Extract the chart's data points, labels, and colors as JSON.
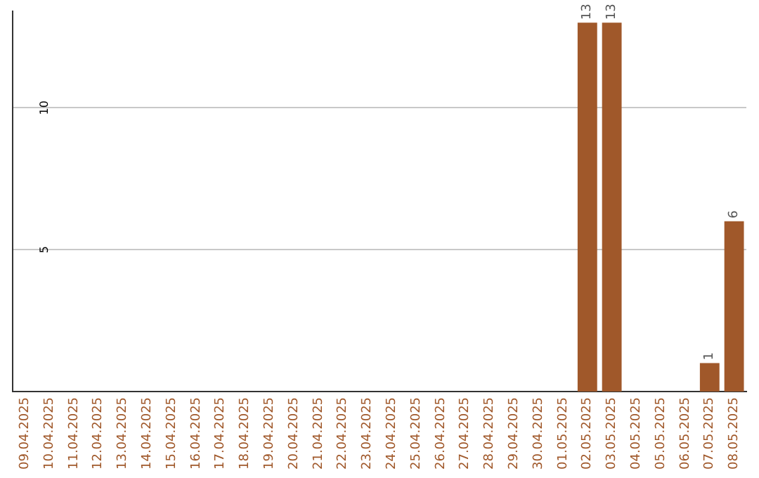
{
  "chart_data": {
    "type": "bar",
    "categories": [
      "09.04.2025",
      "10.04.2025",
      "11.04.2025",
      "12.04.2025",
      "13.04.2025",
      "14.04.2025",
      "15.04.2025",
      "16.04.2025",
      "17.04.2025",
      "18.04.2025",
      "19.04.2025",
      "20.04.2025",
      "21.04.2025",
      "22.04.2025",
      "23.04.2025",
      "24.04.2025",
      "25.04.2025",
      "26.04.2025",
      "27.04.2025",
      "28.04.2025",
      "29.04.2025",
      "30.04.2025",
      "01.05.2025",
      "02.05.2025",
      "03.05.2025",
      "04.05.2025",
      "05.05.2025",
      "06.05.2025",
      "07.05.2025",
      "08.05.2025"
    ],
    "values": [
      0,
      0,
      0,
      0,
      0,
      0,
      0,
      0,
      0,
      0,
      0,
      0,
      0,
      0,
      0,
      0,
      0,
      0,
      0,
      0,
      0,
      0,
      0,
      13,
      13,
      0,
      0,
      0,
      1,
      6
    ],
    "value_labels": [
      null,
      null,
      null,
      null,
      null,
      null,
      null,
      null,
      null,
      null,
      null,
      null,
      null,
      null,
      null,
      null,
      null,
      null,
      null,
      null,
      null,
      null,
      null,
      "13",
      "13",
      null,
      null,
      null,
      "1",
      "6"
    ],
    "color": "#a0582a",
    "ylim": [
      0,
      13.4
    ],
    "yticks": [
      5,
      10
    ],
    "grid": "y",
    "legend": false
  }
}
